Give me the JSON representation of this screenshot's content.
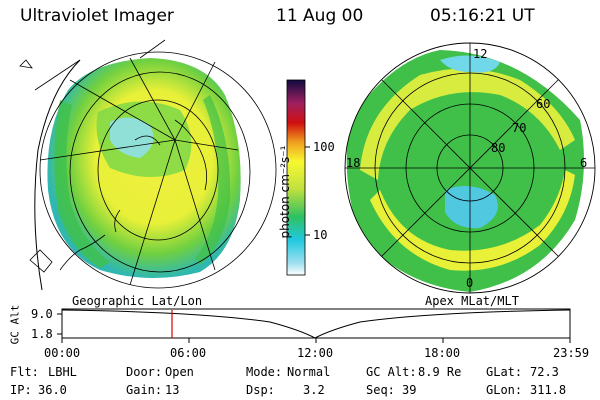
{
  "header": {
    "title": "Ultraviolet Imager",
    "date": "11 Aug 00",
    "time": "05:16:21 UT"
  },
  "left_panel": {
    "caption": "Geographic Lat/Lon"
  },
  "right_panel": {
    "caption": "Apex  MLat/MLT",
    "mlt_labels": [
      "12",
      "18",
      "6",
      "0"
    ],
    "mlat_labels": [
      "60",
      "70",
      "80"
    ]
  },
  "colorbar": {
    "label": "photon cm⁻²s⁻¹",
    "ticks": [
      "100",
      "10"
    ],
    "scale": "log"
  },
  "altitude_plot": {
    "ylabel": "GC Alt",
    "yticks": [
      "9.0",
      "1.8"
    ],
    "xticks": [
      "00:00",
      "06:00",
      "12:00",
      "18:00",
      "23:59"
    ],
    "current_time_marker": "05:16",
    "marker_color": "#dd0000"
  },
  "footer": [
    {
      "key": "Flt:",
      "value": "LBHL"
    },
    {
      "key": "Door:",
      "value": "Open"
    },
    {
      "key": "Mode:",
      "value": "Normal"
    },
    {
      "key": "GC Alt:",
      "value": "8.9 Re"
    },
    {
      "key": "GLat:",
      "value": "72.3"
    },
    {
      "key": "IP:",
      "value": "36.0"
    },
    {
      "key": "Gain:",
      "value": "13"
    },
    {
      "key": "Dsp:",
      "value": "3.2"
    },
    {
      "key": "Seq:",
      "value": "39"
    },
    {
      "key": "GLon:",
      "value": "311.8"
    }
  ],
  "colors": {
    "cyan": "#40d0e0",
    "green": "#40c040",
    "yellow": "#f0f030",
    "orange": "#f0a020",
    "red": "#d01010",
    "navy": "#101040"
  }
}
